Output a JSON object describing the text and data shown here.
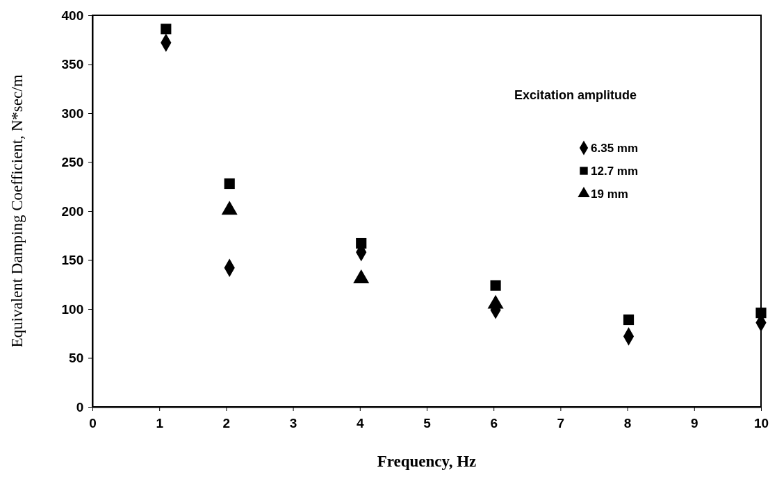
{
  "chart_data": {
    "type": "scatter",
    "xlabel": "Frequency, Hz",
    "ylabel": "Equivalent Damping Coefficient, N*sec/m",
    "legend_title": "Excitation amplitude",
    "legend": "top right",
    "x": [
      1.1,
      2.05,
      4.02,
      6.03,
      8.02,
      10
    ],
    "series": [
      {
        "name": "6.35 mm",
        "color": "#000000",
        "marker": "diamond",
        "values": [
          372,
          142,
          158,
          99,
          72,
          86
        ]
      },
      {
        "name": "12.7 mm",
        "color": "#000000",
        "marker": "square",
        "values": [
          386,
          228,
          167,
          124,
          89,
          96
        ]
      },
      {
        "name": "19 mm",
        "color": "#000000",
        "marker": "triangle",
        "values": [
          null,
          201,
          131,
          105,
          null,
          null
        ]
      }
    ],
    "xlim": [
      0,
      10
    ],
    "xticks": [
      0,
      1,
      2,
      3,
      4,
      5,
      6,
      7,
      8,
      9,
      10
    ],
    "ylim": [
      0,
      400
    ],
    "yticks": [
      0,
      50,
      100,
      150,
      200,
      250,
      300,
      350,
      400
    ],
    "grid": false
  }
}
